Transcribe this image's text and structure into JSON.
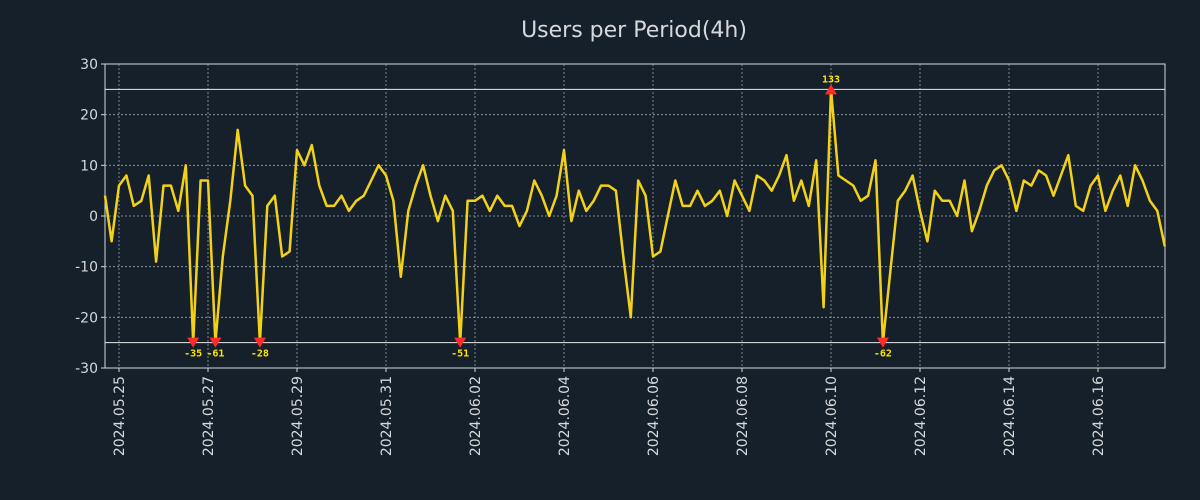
{
  "chart_data": {
    "type": "line",
    "title": "Users per Period(4h)",
    "xlabel": "",
    "ylabel": "",
    "ylim": [
      -30,
      30
    ],
    "yticks": [
      30,
      20,
      10,
      0,
      -10,
      -20,
      -30
    ],
    "clip_limits": [
      25,
      -25
    ],
    "x_tick_labels": [
      "2024.05.25",
      "2024.05.27",
      "2024.05.29",
      "2024.05.31",
      "2024.06.02",
      "2024.06.04",
      "2024.06.06",
      "2024.06.08",
      "2024.06.10",
      "2024.06.12",
      "2024.06.14",
      "2024.06.16"
    ],
    "grid": true,
    "series": [
      {
        "name": "Users",
        "color": "#f2d219",
        "values": [
          4,
          -5,
          6,
          8,
          2,
          3,
          8,
          -9,
          6,
          6,
          1,
          10,
          -25,
          7,
          7,
          -25,
          -8,
          3,
          17,
          6,
          4,
          -25,
          2,
          4,
          -8,
          -7,
          13,
          10,
          14,
          6,
          2,
          2,
          4,
          1,
          3,
          4,
          7,
          10,
          8,
          3,
          -12,
          1,
          6,
          10,
          4,
          -1,
          4,
          1,
          -25,
          3,
          3,
          4,
          1,
          4,
          2,
          2,
          -2,
          1,
          7,
          4,
          0,
          4,
          13,
          -1,
          5,
          1,
          3,
          6,
          6,
          5,
          -8,
          -20,
          7,
          4,
          -8,
          -7,
          0,
          7,
          2,
          2,
          5,
          2,
          3,
          5,
          0,
          7,
          4,
          1,
          8,
          7,
          5,
          8,
          12,
          3,
          7,
          2,
          11,
          -18,
          25,
          8,
          7,
          6,
          3,
          4,
          11,
          -25,
          -11,
          3,
          5,
          8,
          1,
          -5,
          5,
          3,
          3,
          0,
          7,
          -3,
          1,
          6,
          9,
          10,
          7,
          1,
          7,
          6,
          9,
          8,
          4,
          8,
          12,
          2,
          1,
          6,
          8,
          1,
          5,
          8,
          2,
          10,
          7,
          3,
          1,
          -6
        ]
      }
    ],
    "annotations": [
      {
        "index": 12,
        "label": "-35",
        "direction": "down"
      },
      {
        "index": 15,
        "label": "-61",
        "direction": "down"
      },
      {
        "index": 21,
        "label": "-28",
        "direction": "down"
      },
      {
        "index": 48,
        "label": "-51",
        "direction": "down"
      },
      {
        "index": 98,
        "label": "133",
        "direction": "up"
      },
      {
        "index": 105,
        "label": "-62",
        "direction": "down"
      }
    ]
  }
}
